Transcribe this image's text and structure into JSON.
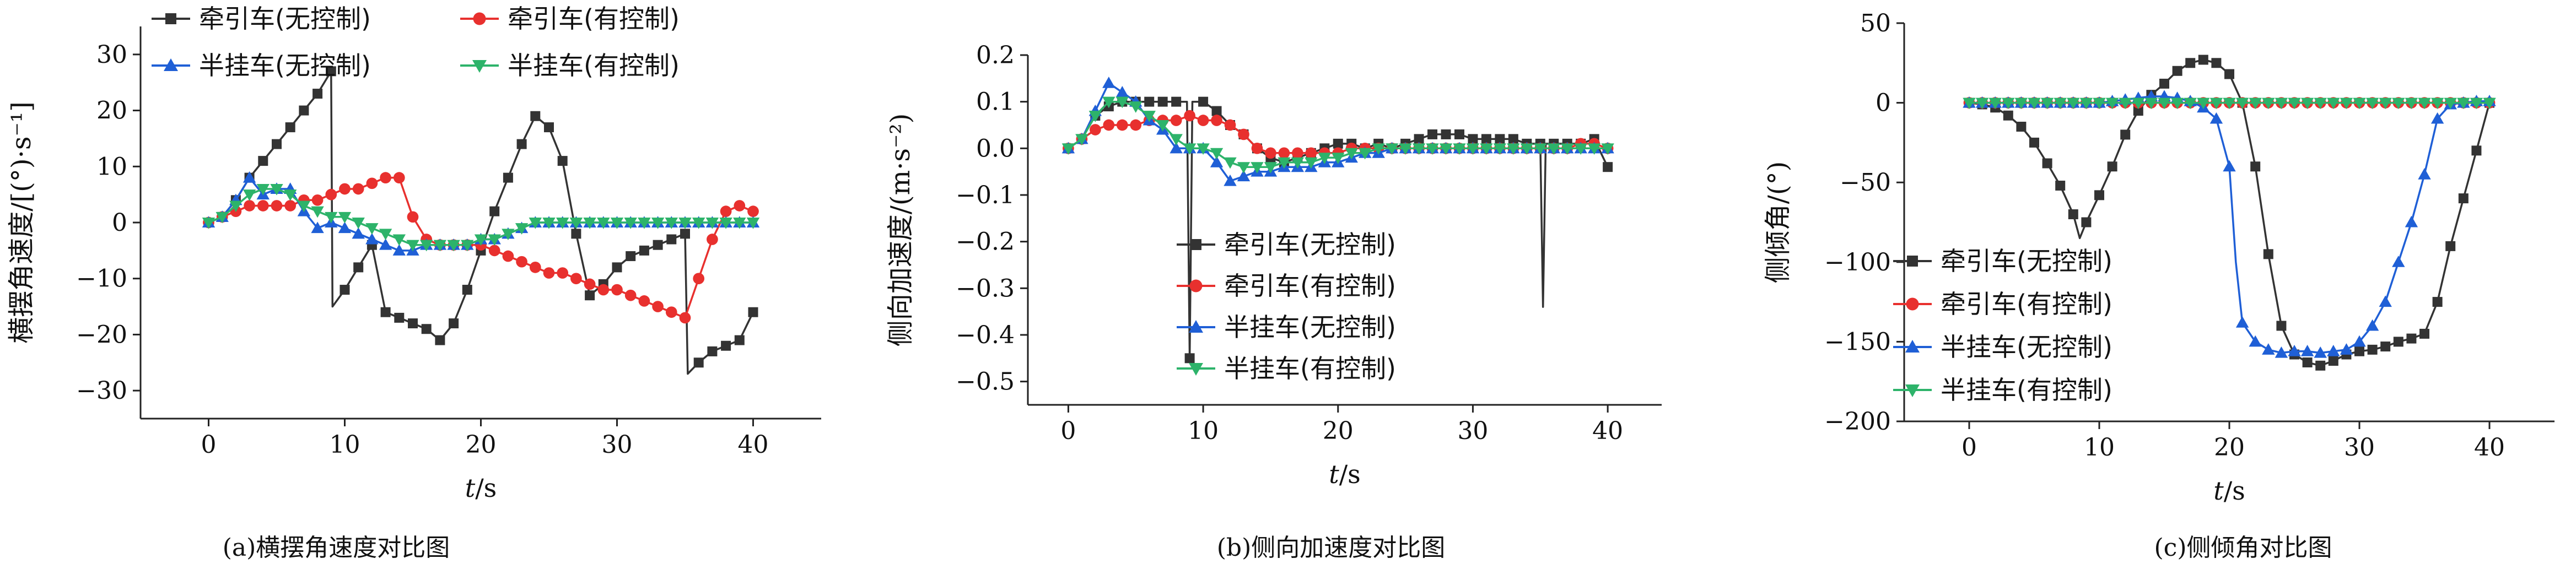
{
  "series_names": [
    "牵引车(无控制)",
    "牵引车(有控制)",
    "半挂车(无控制)",
    "半挂车(有控制)"
  ],
  "colors": {
    "tractor_none": "#333333",
    "tractor_ctrl": "#e8302e",
    "trailer_none": "#1f5fd6",
    "trailer_ctrl": "#2db36a"
  },
  "captions": [
    "(a)横摆角速度对比图",
    "(b)侧向加速度对比图",
    "(c)侧倾角对比图"
  ],
  "chart_data": [
    {
      "type": "line",
      "title": "",
      "xlabel": "t/s",
      "ylabel": "横摆角速度/[(°)·s⁻¹]",
      "xlim": [
        -5,
        45
      ],
      "ylim": [
        -35,
        35
      ],
      "xticks": [
        0,
        10,
        20,
        30,
        40
      ],
      "yticks": [
        -30,
        -20,
        -10,
        0,
        10,
        20,
        30
      ],
      "legend": "top",
      "series": [
        {
          "name": "牵引车(无控制)",
          "x": [
            0,
            1,
            2,
            3,
            4,
            5,
            6,
            7,
            8,
            9,
            9.1,
            10,
            11,
            12,
            13,
            14,
            15,
            16,
            17,
            18,
            19,
            20,
            21,
            22,
            23,
            24,
            25,
            26,
            27,
            28,
            29,
            30,
            31,
            32,
            33,
            34,
            35,
            35.2,
            36,
            37,
            38,
            39,
            40
          ],
          "y": [
            0,
            1,
            4,
            8,
            11,
            14,
            17,
            20,
            23,
            27,
            -15,
            -12,
            -8,
            -4,
            -16,
            -17,
            -18,
            -19,
            -21,
            -18,
            -12,
            -5,
            2,
            8,
            14,
            19,
            17,
            11,
            -2,
            -13,
            -11,
            -8,
            -6,
            -5,
            -4,
            -3,
            -2,
            -27,
            -25,
            -23,
            -22,
            -21,
            -16
          ]
        },
        {
          "name": "牵引车(有控制)",
          "x": [
            0,
            1,
            2,
            3,
            4,
            5,
            6,
            7,
            8,
            9,
            10,
            11,
            12,
            13,
            14,
            15,
            16,
            17,
            18,
            19,
            20,
            21,
            22,
            23,
            24,
            25,
            26,
            27,
            28,
            29,
            30,
            31,
            32,
            33,
            34,
            35,
            36,
            37,
            38,
            39,
            40
          ],
          "y": [
            0,
            1,
            2,
            3,
            3,
            3,
            3,
            4,
            4,
            5,
            6,
            6,
            7,
            8,
            8,
            1,
            -3,
            -4,
            -4,
            -4,
            -4,
            -5,
            -6,
            -7,
            -8,
            -9,
            -9,
            -10,
            -11,
            -12,
            -12,
            -13,
            -14,
            -15,
            -16,
            -17,
            -10,
            -3,
            2,
            3,
            2
          ]
        },
        {
          "name": "半挂车(无控制)",
          "x": [
            0,
            1,
            2,
            3,
            4,
            5,
            6,
            7,
            8,
            9,
            10,
            11,
            12,
            13,
            14,
            15,
            16,
            17,
            18,
            19,
            20,
            21,
            22,
            23,
            24,
            25,
            26,
            27,
            28,
            29,
            30,
            31,
            32,
            33,
            34,
            35,
            36,
            37,
            38,
            39,
            40
          ],
          "y": [
            0,
            1,
            4,
            8,
            5,
            6,
            6,
            2,
            -1,
            0,
            -1,
            -2,
            -3,
            -4,
            -5,
            -5,
            -4,
            -4,
            -4,
            -4,
            -3,
            -3,
            -2,
            -1,
            0,
            0,
            0,
            0,
            0,
            0,
            0,
            0,
            0,
            0,
            0,
            0,
            0,
            0,
            0,
            0,
            0
          ]
        },
        {
          "name": "半挂车(有控制)",
          "x": [
            0,
            1,
            2,
            3,
            4,
            5,
            6,
            7,
            8,
            9,
            10,
            11,
            12,
            13,
            14,
            15,
            16,
            17,
            18,
            19,
            20,
            21,
            22,
            23,
            24,
            25,
            26,
            27,
            28,
            29,
            30,
            31,
            32,
            33,
            34,
            35,
            36,
            37,
            38,
            39,
            40
          ],
          "y": [
            0,
            1,
            3,
            5,
            6,
            6,
            5,
            3,
            2,
            1,
            1,
            0,
            -1,
            -2,
            -3,
            -4,
            -4,
            -4,
            -4,
            -4,
            -3,
            -3,
            -2,
            -1,
            0,
            0,
            0,
            0,
            0,
            0,
            0,
            0,
            0,
            0,
            0,
            0,
            0,
            0,
            0,
            0,
            0
          ]
        }
      ]
    },
    {
      "type": "line",
      "title": "",
      "xlabel": "t/s",
      "ylabel": "侧向加速度/(m·s⁻²)",
      "xlim": [
        -3,
        44
      ],
      "ylim": [
        -0.55,
        0.2
      ],
      "xticks": [
        0,
        10,
        20,
        30,
        40
      ],
      "yticks": [
        -0.5,
        -0.4,
        -0.3,
        -0.2,
        -0.1,
        0.0,
        0.1,
        0.2
      ],
      "legend": "bottom-right",
      "series": [
        {
          "name": "牵引车(无控制)",
          "x": [
            0,
            1,
            2,
            3,
            4,
            5,
            6,
            7,
            8,
            8.8,
            9.0,
            9.2,
            10,
            11,
            12,
            13,
            14,
            15,
            16,
            17,
            18,
            19,
            20,
            21,
            22,
            23,
            24,
            25,
            26,
            27,
            28,
            29,
            30,
            31,
            32,
            33,
            34,
            35,
            35.2,
            35.4,
            36,
            37,
            38,
            39,
            40
          ],
          "y": [
            0,
            0.02,
            0.07,
            0.09,
            0.1,
            0.1,
            0.1,
            0.1,
            0.1,
            0.1,
            -0.45,
            0.1,
            0.1,
            0.08,
            0.05,
            0.03,
            0.0,
            -0.02,
            -0.03,
            -0.02,
            -0.01,
            0.0,
            0.01,
            0.01,
            0.0,
            0.01,
            0.0,
            0.01,
            0.02,
            0.03,
            0.03,
            0.03,
            0.02,
            0.02,
            0.02,
            0.02,
            0.01,
            0.01,
            -0.34,
            0.01,
            0.01,
            0.01,
            0.01,
            0.02,
            -0.04
          ]
        },
        {
          "name": "牵引车(有控制)",
          "x": [
            0,
            1,
            2,
            3,
            4,
            5,
            6,
            7,
            8,
            9,
            10,
            11,
            12,
            13,
            14,
            15,
            16,
            17,
            18,
            19,
            20,
            21,
            22,
            23,
            24,
            25,
            26,
            27,
            28,
            29,
            30,
            31,
            32,
            33,
            34,
            35,
            36,
            37,
            38,
            39,
            40
          ],
          "y": [
            0,
            0.02,
            0.04,
            0.05,
            0.05,
            0.05,
            0.06,
            0.06,
            0.06,
            0.07,
            0.06,
            0.06,
            0.05,
            0.03,
            0.0,
            -0.01,
            -0.01,
            -0.01,
            -0.01,
            -0.01,
            -0.01,
            0.0,
            0.0,
            0.0,
            0.0,
            0.0,
            0.0,
            0.0,
            0.0,
            0.0,
            0.0,
            0.0,
            0.0,
            0.0,
            0.0,
            0.0,
            0.0,
            0.0,
            0.01,
            0.01,
            0.0
          ]
        },
        {
          "name": "半挂车(无控制)",
          "x": [
            0,
            1,
            2,
            3,
            4,
            5,
            6,
            7,
            8,
            9,
            10,
            11,
            12,
            13,
            14,
            15,
            16,
            17,
            18,
            19,
            20,
            21,
            22,
            23,
            24,
            25,
            26,
            27,
            28,
            29,
            30,
            31,
            32,
            33,
            34,
            35,
            36,
            37,
            38,
            39,
            40
          ],
          "y": [
            0,
            0.02,
            0.08,
            0.14,
            0.12,
            0.1,
            0.06,
            0.04,
            0.0,
            0.0,
            0.0,
            -0.03,
            -0.07,
            -0.06,
            -0.05,
            -0.05,
            -0.04,
            -0.04,
            -0.04,
            -0.03,
            -0.03,
            -0.02,
            -0.01,
            -0.01,
            0.0,
            0.0,
            0.0,
            0.0,
            0.0,
            0.0,
            0.0,
            0.0,
            0.0,
            0.0,
            0.0,
            0.0,
            0.0,
            0.0,
            0.0,
            0.0,
            0.0
          ]
        },
        {
          "name": "半挂车(有控制)",
          "x": [
            0,
            1,
            2,
            3,
            4,
            5,
            6,
            7,
            8,
            9,
            10,
            11,
            12,
            13,
            14,
            15,
            16,
            17,
            18,
            19,
            20,
            21,
            22,
            23,
            24,
            25,
            26,
            27,
            28,
            29,
            30,
            31,
            32,
            33,
            34,
            35,
            36,
            37,
            38,
            39,
            40
          ],
          "y": [
            0,
            0.02,
            0.07,
            0.1,
            0.1,
            0.09,
            0.07,
            0.05,
            0.02,
            0.0,
            0.0,
            -0.01,
            -0.03,
            -0.04,
            -0.04,
            -0.04,
            -0.03,
            -0.03,
            -0.03,
            -0.02,
            -0.02,
            -0.01,
            -0.01,
            0.0,
            0.0,
            0.0,
            0.0,
            0.0,
            0.0,
            0.0,
            0.0,
            0.0,
            0.0,
            0.0,
            0.0,
            0.0,
            0.0,
            0.0,
            0.0,
            0.0,
            0.0
          ]
        }
      ]
    },
    {
      "type": "line",
      "title": "",
      "xlabel": "t/s",
      "ylabel": "侧倾角/(°)",
      "xlim": [
        -5,
        45
      ],
      "ylim": [
        -200,
        50
      ],
      "xticks": [
        0,
        10,
        20,
        30,
        40
      ],
      "yticks": [
        -200,
        -150,
        -100,
        -50,
        0,
        50
      ],
      "legend": "bottom-left",
      "series": [
        {
          "name": "牵引车(无控制)",
          "x": [
            0,
            1,
            2,
            3,
            4,
            5,
            6,
            7,
            8,
            8.5,
            9,
            10,
            11,
            12,
            13,
            14,
            15,
            16,
            17,
            18,
            19,
            20,
            21,
            22,
            23,
            24,
            25,
            26,
            27,
            28,
            29,
            30,
            31,
            32,
            33,
            34,
            35,
            36,
            37,
            38,
            39,
            40
          ],
          "y": [
            0,
            -1,
            -3,
            -8,
            -15,
            -25,
            -38,
            -52,
            -70,
            -85,
            -75,
            -58,
            -40,
            -20,
            -5,
            5,
            12,
            20,
            25,
            27,
            25,
            18,
            0,
            -40,
            -95,
            -140,
            -158,
            -163,
            -165,
            -162,
            -158,
            -156,
            -155,
            -153,
            -150,
            -148,
            -145,
            -125,
            -90,
            -60,
            -30,
            0
          ]
        },
        {
          "name": "牵引车(有控制)",
          "x": [
            0,
            1,
            2,
            3,
            4,
            5,
            6,
            7,
            8,
            9,
            10,
            11,
            12,
            13,
            14,
            15,
            16,
            17,
            18,
            19,
            20,
            21,
            22,
            23,
            24,
            25,
            26,
            27,
            28,
            29,
            30,
            31,
            32,
            33,
            34,
            35,
            36,
            37,
            38,
            39,
            40
          ],
          "y": [
            0,
            0,
            0,
            0,
            0,
            0,
            0,
            0,
            0,
            0,
            0,
            0,
            0,
            0,
            0,
            0,
            0,
            0,
            0,
            0,
            0,
            0,
            0,
            0,
            0,
            0,
            0,
            0,
            0,
            0,
            0,
            0,
            0,
            0,
            0,
            0,
            0,
            0,
            0,
            0,
            0
          ]
        },
        {
          "name": "半挂车(无控制)",
          "x": [
            0,
            1,
            2,
            3,
            4,
            5,
            6,
            7,
            8,
            9,
            10,
            11,
            12,
            13,
            14,
            15,
            16,
            17,
            18,
            19,
            20,
            20.5,
            21,
            22,
            23,
            24,
            25,
            26,
            27,
            28,
            29,
            30,
            31,
            32,
            33,
            34,
            35,
            36,
            37,
            38,
            39,
            40
          ],
          "y": [
            0,
            0,
            0,
            0,
            0,
            0,
            0,
            0,
            0,
            0,
            0,
            1,
            2,
            3,
            4,
            4,
            3,
            1,
            -3,
            -10,
            -40,
            -100,
            -138,
            -150,
            -155,
            -157,
            -156,
            -156,
            -157,
            -156,
            -155,
            -150,
            -140,
            -125,
            -100,
            -75,
            -45,
            -10,
            -1,
            0,
            1,
            1
          ]
        },
        {
          "name": "半挂车(有控制)",
          "x": [
            0,
            1,
            2,
            3,
            4,
            5,
            6,
            7,
            8,
            9,
            10,
            11,
            12,
            13,
            14,
            15,
            16,
            17,
            18,
            19,
            20,
            21,
            22,
            23,
            24,
            25,
            26,
            27,
            28,
            29,
            30,
            31,
            32,
            33,
            34,
            35,
            36,
            37,
            38,
            39,
            40
          ],
          "y": [
            0,
            0,
            0,
            0,
            0,
            0,
            0,
            0,
            0,
            0,
            0,
            0,
            0,
            0,
            0,
            0,
            0,
            0,
            0,
            0,
            0,
            0,
            0,
            0,
            0,
            0,
            0,
            0,
            0,
            0,
            0,
            0,
            0,
            0,
            0,
            0,
            0,
            0,
            0,
            0,
            0
          ]
        }
      ]
    }
  ]
}
